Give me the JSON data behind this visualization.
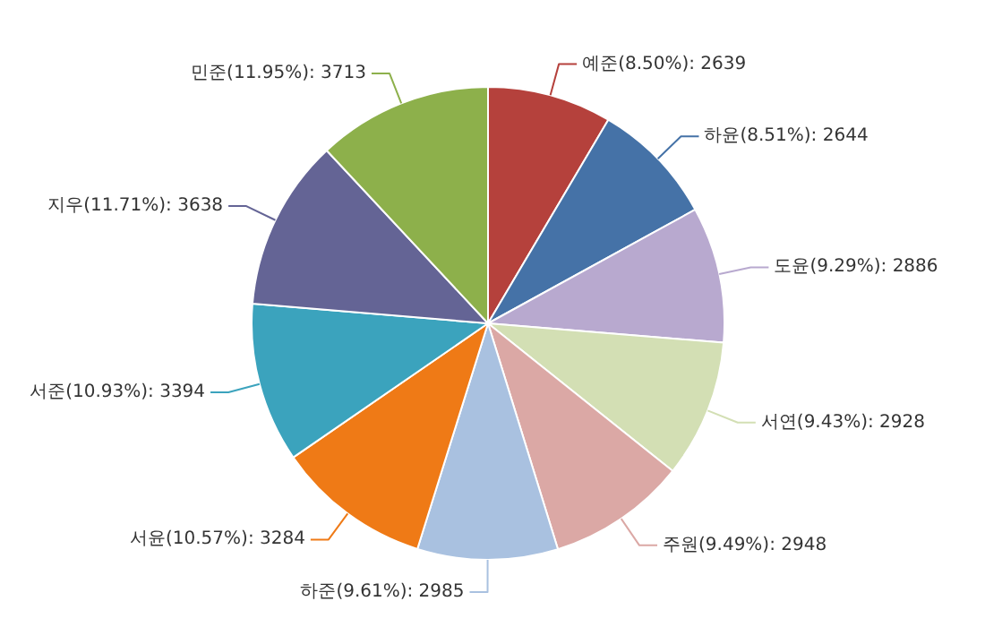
{
  "chart_data": {
    "type": "pie",
    "categories": [
      "예준",
      "하윤",
      "도윤",
      "서연",
      "주원",
      "하준",
      "서윤",
      "서준",
      "지우",
      "민준"
    ],
    "values": [
      2639,
      2644,
      2886,
      2928,
      2948,
      2985,
      3284,
      3394,
      3638,
      3713
    ],
    "value_labels": [
      "(8.50%): 2639",
      "(8.51%): 2644",
      "(9.29%): 2886",
      "(9.43%): 2928",
      "(9.49%): 2948",
      "(9.61%): 2985",
      "(10.57%): 3284",
      "(10.93%): 3394",
      "(11.71%): 3638",
      "(11.95%): 3713"
    ],
    "colors": [
      "#b5413c",
      "#4572a7",
      "#b8a9cf",
      "#d3dfb4",
      "#dba8a5",
      "#a9c1e0",
      "#ef7a16",
      "#3ba3bd",
      "#646495",
      "#8db04b"
    ],
    "legend": false
  }
}
